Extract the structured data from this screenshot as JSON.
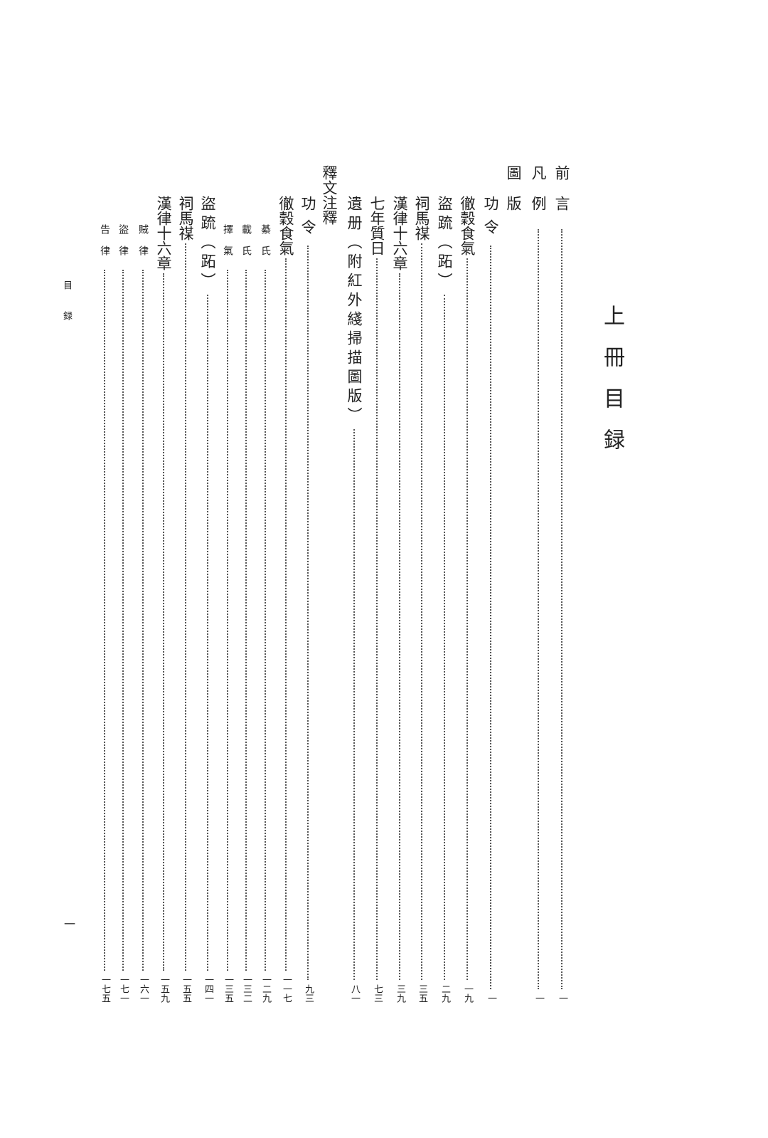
{
  "title": "上冊目録",
  "running_head": "目録",
  "folio": "一",
  "entries": [
    {
      "title": "前言",
      "page": "一",
      "level": 1
    },
    {
      "title": "凡例",
      "page": "一",
      "level": 1
    },
    {
      "title": "圖版",
      "page": "",
      "level": 1
    },
    {
      "title": "功令",
      "page": "一",
      "level": 2
    },
    {
      "title": "徹穀食氣",
      "page": "一九",
      "level": 2
    },
    {
      "title": "盜䟽（跖）",
      "page": "二九",
      "level": 2
    },
    {
      "title": "祠馬禖",
      "page": "三五",
      "level": 2
    },
    {
      "title": "漢律十六章",
      "page": "三九",
      "level": 2
    },
    {
      "title": "七年質日",
      "page": "七三",
      "level": 2
    },
    {
      "title": "遺册（附紅外綫掃描圖版）",
      "page": "八一",
      "level": 2
    },
    {
      "title": "釋文注釋",
      "page": "",
      "level": 1
    },
    {
      "title": "功令",
      "page": "九三",
      "level": 2
    },
    {
      "title": "徹穀食氣",
      "page": "一一七",
      "level": 2
    },
    {
      "title": "綦氏",
      "page": "一二九",
      "level": 3
    },
    {
      "title": "載氏",
      "page": "一三二",
      "level": 3
    },
    {
      "title": "擇氣",
      "page": "一三五",
      "level": 3
    },
    {
      "title": "盜䟽（跖）",
      "page": "一四一",
      "level": 2
    },
    {
      "title": "祠馬禖",
      "page": "一五五",
      "level": 2
    },
    {
      "title": "漢律十六章",
      "page": "一五九",
      "level": 2
    },
    {
      "title": "賊律",
      "page": "一六一",
      "level": 3
    },
    {
      "title": "盜律",
      "page": "一七一",
      "level": 3
    },
    {
      "title": "告律",
      "page": "一七五",
      "level": 3
    }
  ]
}
